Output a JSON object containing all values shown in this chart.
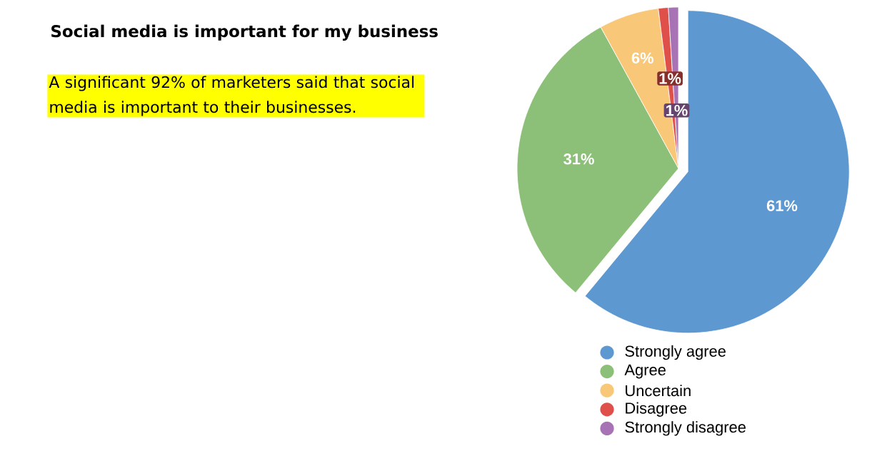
{
  "chart_data": {
    "type": "pie",
    "title": "Social media is important for my business",
    "annotations": [
      "A significant 92% of marketers said that social media is important to their businesses."
    ],
    "categories": [
      "Strongly agree",
      "Agree",
      "Uncertain",
      "Disagree",
      "Strongly disagree"
    ],
    "values": [
      61,
      31,
      6,
      1,
      1
    ],
    "colors": [
      "#5e98d0",
      "#8cbf78",
      "#f8c878",
      "#e0504a",
      "#a873b5"
    ],
    "value_labels": [
      "61%",
      "31%",
      "6%",
      "1%",
      "1%"
    ],
    "legend": "bottom"
  }
}
